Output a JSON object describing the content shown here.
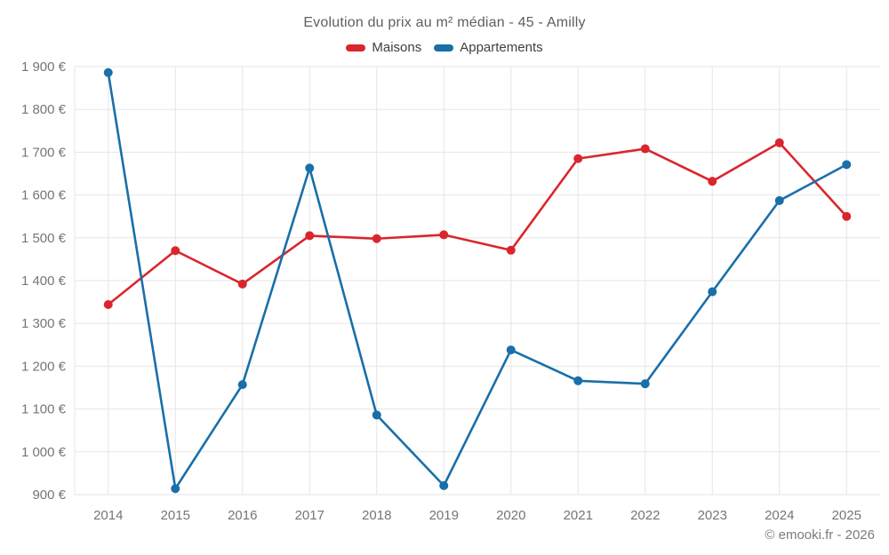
{
  "footer": {
    "credit": "© emooki.fr - 2026"
  },
  "chart_data": {
    "type": "line",
    "title": "Evolution du prix au m² médian - 45 - Amilly",
    "x": [
      2014,
      2015,
      2016,
      2017,
      2018,
      2019,
      2020,
      2021,
      2022,
      2023,
      2024,
      2025
    ],
    "series": [
      {
        "name": "Maisons",
        "color": "#d9262d",
        "values": [
          1344,
          1470,
          1392,
          1505,
          1498,
          1507,
          1471,
          1685,
          1708,
          1632,
          1722,
          1550
        ]
      },
      {
        "name": "Appartements",
        "color": "#1a6fa8",
        "values": [
          1886,
          914,
          1157,
          1663,
          1086,
          921,
          1238,
          1166,
          1159,
          1374,
          1587,
          1671
        ]
      }
    ],
    "xlabel": "",
    "ylabel": "",
    "ylim": [
      900,
      1900
    ],
    "ytick_step": 100,
    "ytick_suffix": " €",
    "grid": true,
    "grid_color": "#e6e6e6",
    "legend_position": "top"
  }
}
